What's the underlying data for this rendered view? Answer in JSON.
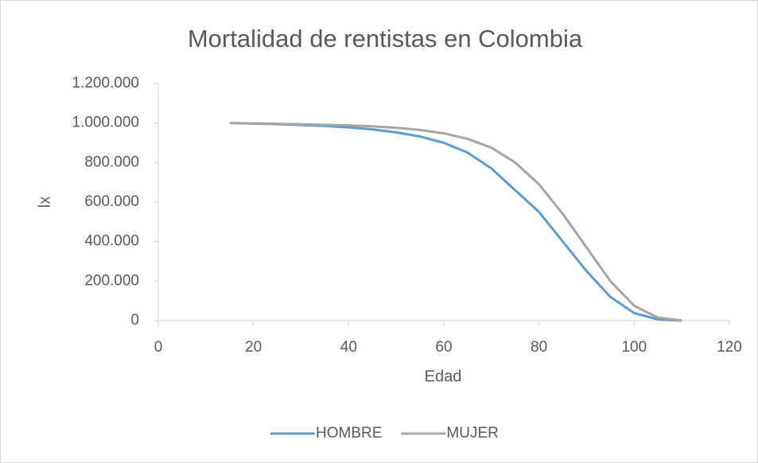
{
  "chart_data": {
    "type": "line",
    "title": "Mortalidad de rentistas en Colombia",
    "x_label": "Edad",
    "y_label": "lx",
    "x": [
      15,
      20,
      25,
      30,
      35,
      40,
      45,
      50,
      55,
      60,
      65,
      70,
      75,
      80,
      85,
      90,
      95,
      100,
      105,
      110
    ],
    "series": [
      {
        "name": "HOMBRE",
        "color": "#5b9bd5",
        "values": [
          1000000,
          997000,
          994000,
          990000,
          985000,
          978000,
          968000,
          953000,
          932000,
          900000,
          850000,
          770000,
          660000,
          550000,
          400000,
          250000,
          120000,
          38000,
          6000,
          0
        ]
      },
      {
        "name": "MUJER",
        "color": "#a5a5a5",
        "values": [
          1000000,
          998000,
          996000,
          994000,
          991000,
          988000,
          983000,
          976000,
          965000,
          948000,
          920000,
          875000,
          800000,
          690000,
          540000,
          370000,
          200000,
          75000,
          15000,
          1000
        ]
      }
    ],
    "xlim": [
      0,
      120
    ],
    "xticks": [
      0,
      20,
      40,
      60,
      80,
      100,
      120
    ],
    "ylim": [
      0,
      1200000
    ],
    "yticks": [
      0,
      {
        "value": 200000,
        "label": "200.000"
      },
      {
        "value": 400000,
        "label": "400.000"
      },
      {
        "value": 600000,
        "label": "600.000"
      },
      {
        "value": 800000,
        "label": "800.000"
      },
      {
        "value": 1000000,
        "label": "1.000.000"
      },
      {
        "value": 1200000,
        "label": "1.200.000"
      }
    ],
    "grid": false,
    "legend": "bottom"
  }
}
